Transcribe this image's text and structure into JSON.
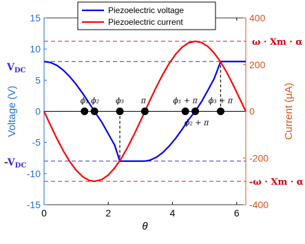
{
  "chart_data": {
    "type": "line",
    "xlabel": "θ",
    "ylabel_left": "Voltage (V)",
    "ylabel_right": "Current (μA)",
    "xlim": [
      0,
      6.2832
    ],
    "ylim_left": [
      -15,
      15
    ],
    "ylim_right": [
      -400,
      400
    ],
    "x_ticks": [
      0,
      2,
      4,
      6
    ],
    "y_left_ticks": [
      -15,
      -10,
      -5,
      0,
      5,
      10,
      15
    ],
    "y_right_ticks": [
      -400,
      -200,
      0,
      200,
      400
    ],
    "legend_position": "top",
    "series": [
      {
        "name": "Piezoelectric voltage",
        "axis": "left",
        "color": "#0000ff",
        "x": [
          0,
          0.2,
          0.4,
          0.6,
          0.8,
          1.0,
          1.2,
          1.4,
          1.57,
          1.8,
          2.0,
          2.2,
          2.36,
          2.6,
          2.8,
          3.0,
          3.14,
          3.3,
          3.5,
          3.7,
          3.9,
          4.1,
          4.3,
          4.5,
          4.71,
          4.9,
          5.1,
          5.3,
          5.5,
          5.7,
          5.9,
          6.1,
          6.2832
        ],
        "y": [
          8,
          7.84,
          7.38,
          6.6,
          5.57,
          4.32,
          2.9,
          1.35,
          0,
          -1.76,
          -3.6,
          -5.45,
          -8,
          -8,
          -8,
          -8,
          -8,
          -7.84,
          -7.38,
          -6.6,
          -5.57,
          -4.32,
          -2.9,
          -1.35,
          0,
          1.52,
          3.35,
          5.27,
          8,
          8,
          8,
          8,
          8
        ]
      },
      {
        "name": "Piezoelectric current",
        "axis": "right",
        "color": "#ff0000",
        "x": [
          0,
          0.2,
          0.4,
          0.6,
          0.8,
          1.0,
          1.2,
          1.4,
          1.571,
          1.8,
          2.0,
          2.2,
          2.4,
          2.6,
          2.8,
          3.0,
          3.1416,
          3.3,
          3.5,
          3.7,
          3.9,
          4.1,
          4.3,
          4.5,
          4.712,
          4.9,
          5.1,
          5.3,
          5.5,
          5.7,
          5.9,
          6.1,
          6.2832
        ],
        "y": [
          0,
          -59.6,
          -116.8,
          -169.4,
          -215.2,
          -252.5,
          -279.6,
          -295.6,
          -300,
          -292.2,
          -272.8,
          -242.5,
          -202.6,
          -154.7,
          -100.5,
          -42.3,
          0,
          47.5,
          105.3,
          158.6,
          205.7,
          244.9,
          274.5,
          293.2,
          300,
          294.8,
          277.9,
          249.6,
          211.2,
          164.2,
          110.5,
          52.4,
          0
        ]
      }
    ],
    "reference_lines": {
      "voltage": [
        8,
        -8
      ],
      "current": [
        300,
        -300
      ]
    },
    "markers": [
      {
        "x": 1.26,
        "label": "ϕ₁"
      },
      {
        "x": 1.57,
        "label": "ϕ₂"
      },
      {
        "x": 2.36,
        "label": "ϕ₃"
      },
      {
        "x": 3.14,
        "label": "π"
      },
      {
        "x": 4.4,
        "label": "ϕ₁ + π"
      },
      {
        "x": 4.71,
        "label": "ϕ₂ + π"
      },
      {
        "x": 5.5,
        "label": "ϕ₃ + π"
      }
    ],
    "annotations": {
      "vdc_pos": "VDC",
      "vdc_neg": "-VDC",
      "i_pos": "ω · Xm · α",
      "i_neg": "-ω · Xm · α"
    }
  },
  "colors": {
    "voltage_axis": "#1f6fd6",
    "current_axis": "#e0501a",
    "voltage_line": "#0000ff",
    "current_line": "#ff0000",
    "ref_voltage": "#3a2bd6",
    "ref_current": "#c0186a",
    "bold_annotation": "#d0000d"
  }
}
